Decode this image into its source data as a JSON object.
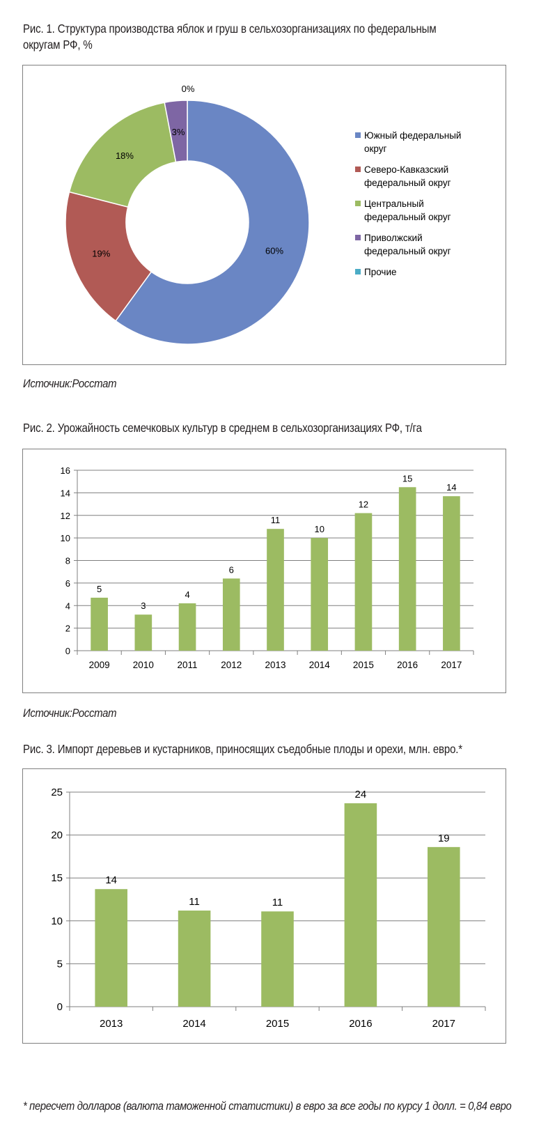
{
  "figures": {
    "fig1_caption": "Рис. 1. Структура производства яблок и груш в сельхозорганизациях по федеральным округам РФ, %",
    "fig1_source": "Источник:Росстат",
    "fig2_caption": "Рис. 2. Урожайность семечковых культур в среднем в сельхозорганизациях РФ, т/га",
    "fig2_source": "Источник:Росстат",
    "fig3_caption": "Рис. 3. Импорт деревьев и кустарников, приносящих съедобные плоды и орехи, млн. евро.*",
    "footnote": "* пересчет долларов (валюта таможенной статистики) в евро за все годы по курсу 1 долл. = 0,84 евро"
  },
  "chart_data": [
    {
      "type": "pie",
      "variant": "donut",
      "labels": [
        "Южный федеральный округ",
        "Северо-Кавказский федеральный округ",
        "Центральный федеральный округ",
        "Приволжский федеральный округ",
        "Прочие"
      ],
      "legend_lines": [
        [
          "Южный федеральный",
          "округ"
        ],
        [
          "Северо-Кавказский",
          "федеральный округ"
        ],
        [
          "Центральный",
          "федеральный округ"
        ],
        [
          "Приволжский",
          "федеральный округ"
        ],
        [
          "Прочие"
        ]
      ],
      "values": [
        60,
        19,
        18,
        3,
        0
      ],
      "data_labels": [
        "60%",
        "19%",
        "18%",
        "3%",
        "0%"
      ],
      "colors": [
        "#6a86c4",
        "#b15a55",
        "#9cbb62",
        "#7e66a4",
        "#4bacc6"
      ],
      "legend_position": "right"
    },
    {
      "type": "bar",
      "categories": [
        "2009",
        "2010",
        "2011",
        "2012",
        "2013",
        "2014",
        "2015",
        "2016",
        "2017"
      ],
      "values": [
        4.7,
        3.2,
        4.2,
        6.4,
        10.8,
        10.0,
        12.2,
        14.5,
        13.7
      ],
      "data_labels": [
        "5",
        "3",
        "4",
        "6",
        "11",
        "10",
        "12",
        "15",
        "14"
      ],
      "ylim": [
        0,
        16
      ],
      "yticks": [
        0,
        2,
        4,
        6,
        8,
        10,
        12,
        14,
        16
      ],
      "grid": true,
      "color": "#9cbb62"
    },
    {
      "type": "bar",
      "categories": [
        "2013",
        "2014",
        "2015",
        "2016",
        "2017"
      ],
      "values": [
        13.7,
        11.2,
        11.1,
        23.7,
        18.6
      ],
      "data_labels": [
        "14",
        "11",
        "11",
        "24",
        "19"
      ],
      "ylim": [
        0,
        25
      ],
      "yticks": [
        0,
        5,
        10,
        15,
        20,
        25
      ],
      "grid": true,
      "color": "#9cbb62"
    }
  ]
}
